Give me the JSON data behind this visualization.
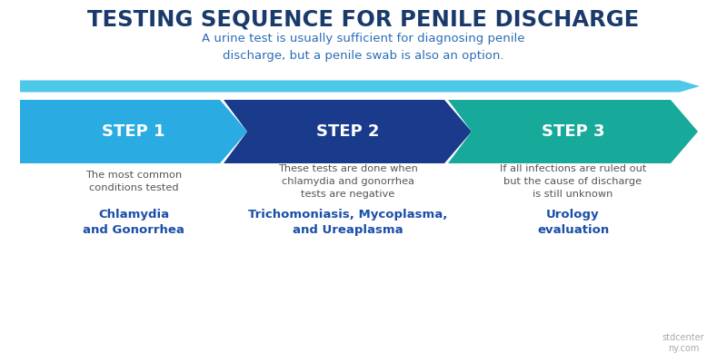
{
  "title": "TESTING SEQUENCE FOR PENILE DISCHARGE",
  "subtitle": "A urine test is usually sufficient for diagnosing penile\ndischarge, but a penile swab is also an option.",
  "background_color": "#ffffff",
  "title_color": "#1a3a6b",
  "subtitle_color": "#2a6db5",
  "steps": [
    "STEP 1",
    "STEP 2",
    "STEP 3"
  ],
  "step_colors": [
    "#2aace2",
    "#1a3a8c",
    "#17a99a"
  ],
  "thin_arrow_color": "#4dc8e8",
  "descriptions": [
    "The most common\nconditions tested",
    "These tests are done when\nchlamydia and gonorrhea\ntests are negative",
    "If all infections are ruled out\nbut the cause of discharge\nis still unknown"
  ],
  "highlights": [
    "Chlamydia\nand Gonorrhea",
    "Trichomoniasis, Mycoplasma,\nand Ureaplasma",
    "Urology\nevaluation"
  ],
  "highlight_color": "#1a4fa8",
  "desc_color": "#555555",
  "step_text_color": "#ffffff",
  "fig_width": 8.0,
  "fig_height": 4.0,
  "dpi": 100
}
